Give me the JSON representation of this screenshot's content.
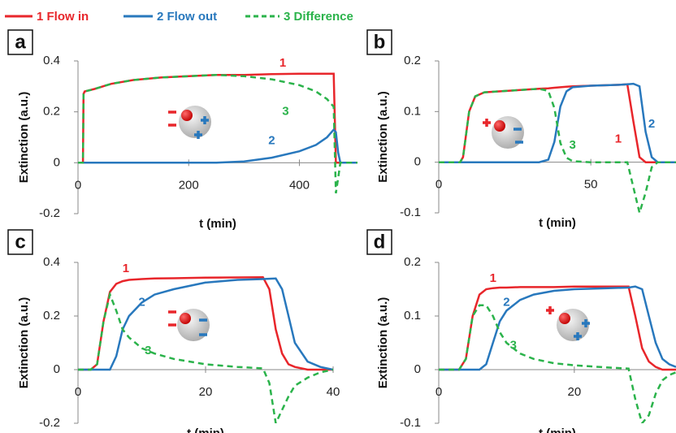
{
  "chart_data": [
    {
      "type": "line",
      "label": "a",
      "xlabel": "t (min)",
      "ylabel": "Extinction (a.u.)",
      "x": [
        0,
        9,
        10,
        12,
        30,
        60,
        100,
        150,
        200,
        250,
        300,
        350,
        400,
        430,
        450,
        462,
        466,
        470,
        474,
        480,
        505
      ],
      "xlim": [
        0,
        505
      ],
      "xticks": [
        0,
        200,
        400
      ],
      "ylim": [
        -0.2,
        0.4
      ],
      "yticks": [
        -0.2,
        0,
        0.2,
        0.4
      ],
      "series": [
        {
          "name": "1 Flow in",
          "color": "#e8262b",
          "values": [
            0,
            0,
            0.27,
            0.28,
            0.29,
            0.31,
            0.325,
            0.335,
            0.34,
            0.345,
            0.345,
            0.348,
            0.35,
            0.35,
            0.35,
            0.35,
            0,
            0,
            0,
            0,
            0
          ]
        },
        {
          "name": "2 Flow out",
          "color": "#2878bd",
          "values": [
            0,
            0,
            0,
            0,
            0,
            0,
            0,
            0,
            0,
            0,
            0.005,
            0.02,
            0.045,
            0.07,
            0.1,
            0.13,
            0.12,
            0.04,
            0,
            0,
            0
          ]
        },
        {
          "name": "3 Difference",
          "color": "#2bb34b",
          "dashed": true,
          "values": [
            0,
            0,
            0.27,
            0.28,
            0.29,
            0.31,
            0.325,
            0.335,
            0.34,
            0.345,
            0.34,
            0.328,
            0.305,
            0.28,
            0.25,
            0.22,
            -0.12,
            -0.06,
            0,
            0,
            0
          ]
        }
      ],
      "annotations": [
        {
          "text": "1",
          "x": 370,
          "y": 0.39,
          "color": "#e8262b"
        },
        {
          "text": "2",
          "x": 350,
          "y": 0.085,
          "color": "#2878bd"
        },
        {
          "text": "3",
          "x": 375,
          "y": 0.2,
          "color": "#2bb34b"
        }
      ]
    },
    {
      "type": "line",
      "label": "b",
      "xlabel": "t (min)",
      "ylabel": "Extinction (a.u.)",
      "x": [
        0,
        7,
        8,
        10,
        12,
        15,
        25,
        33,
        36,
        38,
        40,
        42,
        44,
        50,
        60,
        62,
        64,
        66,
        68,
        70,
        72,
        78
      ],
      "xlim": [
        0,
        78
      ],
      "xticks": [
        0,
        50
      ],
      "ylim": [
        -0.1,
        0.2
      ],
      "yticks": [
        -0.1,
        0,
        0.1,
        0.2
      ],
      "series": [
        {
          "color": "#e8262b",
          "values": [
            0,
            0,
            0.01,
            0.1,
            0.13,
            0.138,
            0.142,
            0.145,
            0.146,
            0.147,
            0.148,
            0.149,
            0.15,
            0.151,
            0.153,
            0.154,
            0.08,
            0.01,
            0,
            0,
            0,
            0
          ]
        },
        {
          "color": "#2878bd",
          "values": [
            0,
            0,
            0,
            0,
            0,
            0,
            0,
            0,
            0.005,
            0.04,
            0.11,
            0.14,
            0.148,
            0.151,
            0.153,
            0.154,
            0.155,
            0.15,
            0.06,
            0.01,
            0,
            0
          ]
        },
        {
          "color": "#2bb34b",
          "dashed": true,
          "values": [
            0,
            0,
            0.01,
            0.1,
            0.13,
            0.138,
            0.142,
            0.145,
            0.141,
            0.107,
            0.038,
            0.009,
            0.002,
            0,
            0,
            0,
            -0.05,
            -0.1,
            -0.06,
            -0.01,
            0,
            0
          ]
        }
      ],
      "annotations": [
        {
          "text": "1",
          "x": 59,
          "y": 0.045,
          "color": "#e8262b"
        },
        {
          "text": "2",
          "x": 70,
          "y": 0.075,
          "color": "#2878bd"
        },
        {
          "text": "3",
          "x": 44,
          "y": 0.033,
          "color": "#2bb34b"
        }
      ]
    },
    {
      "type": "line",
      "label": "c",
      "xlabel": "t (min)",
      "ylabel": "Extinction (a.u.)",
      "x": [
        0,
        2,
        3,
        4,
        5,
        6,
        7,
        8,
        10,
        12,
        15,
        20,
        25,
        29,
        30,
        31,
        32,
        33,
        34,
        36,
        38,
        40
      ],
      "xlim": [
        0,
        40
      ],
      "xticks": [
        0,
        20,
        40
      ],
      "ylim": [
        -0.2,
        0.4
      ],
      "yticks": [
        -0.2,
        0,
        0.2,
        0.4
      ],
      "series": [
        {
          "color": "#e8262b",
          "values": [
            0,
            0,
            0.02,
            0.18,
            0.29,
            0.32,
            0.33,
            0.335,
            0.338,
            0.34,
            0.341,
            0.343,
            0.344,
            0.345,
            0.3,
            0.15,
            0.06,
            0.02,
            0.01,
            0,
            0,
            0
          ]
        },
        {
          "color": "#2878bd",
          "values": [
            0,
            0,
            0,
            0,
            0,
            0.05,
            0.15,
            0.2,
            0.25,
            0.28,
            0.3,
            0.325,
            0.335,
            0.338,
            0.339,
            0.34,
            0.3,
            0.2,
            0.1,
            0.03,
            0.01,
            0
          ]
        },
        {
          "color": "#2bb34b",
          "dashed": true,
          "values": [
            0,
            0,
            0.02,
            0.18,
            0.28,
            0.22,
            0.15,
            0.12,
            0.08,
            0.06,
            0.04,
            0.02,
            0.01,
            0.005,
            -0.05,
            -0.2,
            -0.15,
            -0.1,
            -0.06,
            -0.03,
            -0.01,
            0
          ]
        }
      ],
      "annotations": [
        {
          "text": "1",
          "x": 7.5,
          "y": 0.375,
          "color": "#e8262b"
        },
        {
          "text": "2",
          "x": 10,
          "y": 0.25,
          "color": "#2878bd"
        },
        {
          "text": "3",
          "x": 11,
          "y": 0.07,
          "color": "#2bb34b"
        }
      ]
    },
    {
      "type": "line",
      "label": "d",
      "xlabel": "t (min)",
      "ylabel": "Extinction (a.u.)",
      "x": [
        0,
        3,
        4,
        5,
        6,
        7,
        8,
        9,
        10,
        12,
        14,
        17,
        20,
        25,
        28,
        29,
        30,
        31,
        32,
        33,
        34,
        35
      ],
      "xlim": [
        0,
        35
      ],
      "xticks": [
        0,
        20
      ],
      "ylim": [
        -0.1,
        0.2
      ],
      "yticks": [
        -0.1,
        0,
        0.1,
        0.2
      ],
      "series": [
        {
          "color": "#e8262b",
          "values": [
            0,
            0,
            0.02,
            0.1,
            0.14,
            0.15,
            0.152,
            0.153,
            0.153,
            0.154,
            0.154,
            0.154,
            0.155,
            0.155,
            0.155,
            0.1,
            0.04,
            0.015,
            0.005,
            0,
            0,
            0
          ]
        },
        {
          "color": "#2878bd",
          "values": [
            0,
            0,
            0,
            0,
            0,
            0.01,
            0.05,
            0.09,
            0.11,
            0.13,
            0.14,
            0.147,
            0.15,
            0.152,
            0.153,
            0.155,
            0.15,
            0.1,
            0.05,
            0.02,
            0.01,
            0.005
          ]
        },
        {
          "color": "#2bb34b",
          "dashed": true,
          "values": [
            0,
            0,
            0.02,
            0.1,
            0.12,
            0.12,
            0.1,
            0.07,
            0.05,
            0.03,
            0.02,
            0.012,
            0.008,
            0.004,
            0.002,
            -0.055,
            -0.1,
            -0.085,
            -0.045,
            -0.02,
            -0.01,
            -0.005
          ]
        }
      ],
      "annotations": [
        {
          "text": "1",
          "x": 8,
          "y": 0.17,
          "color": "#e8262b"
        },
        {
          "text": "2",
          "x": 10,
          "y": 0.125,
          "color": "#2878bd"
        },
        {
          "text": "3",
          "x": 11,
          "y": 0.045,
          "color": "#2bb34b"
        }
      ]
    }
  ]
}
